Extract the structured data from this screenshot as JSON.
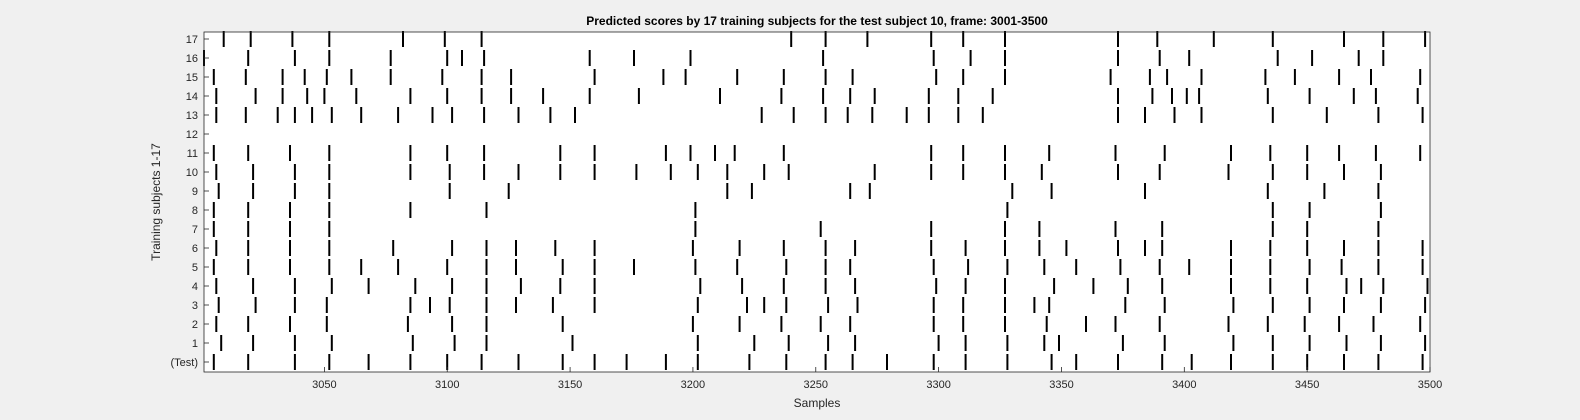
{
  "chart_data": {
    "type": "scatter",
    "title": "Predicted scores by 17 training subjects for the test subject 10, frame: 3001-3500",
    "xlabel": "Samples",
    "ylabel": "Training subjects 1-17",
    "xlim": [
      3001,
      3500
    ],
    "xticks": [
      3050,
      3100,
      3150,
      3200,
      3250,
      3300,
      3350,
      3400,
      3450,
      3500
    ],
    "ytick_labels": [
      "(Test)",
      "1",
      "2",
      "3",
      "4",
      "5",
      "6",
      "7",
      "8",
      "9",
      "10",
      "11",
      "12",
      "13",
      "14",
      "15",
      "16",
      "17"
    ],
    "rows": [
      {
        "label": "(Test)",
        "events": [
          3005,
          3019,
          3038,
          3052,
          3068,
          3085,
          3100,
          3114,
          3129,
          3147,
          3160,
          3173,
          3189,
          3202,
          3223,
          3238,
          3254,
          3265,
          3279,
          3298,
          3311,
          3328,
          3346,
          3356,
          3373,
          3391,
          3403,
          3419,
          3436,
          3450,
          3465,
          3479,
          3497
        ]
      },
      {
        "label": "1",
        "events": [
          3008,
          3021,
          3038,
          3053,
          3086,
          3103,
          3116,
          3151,
          3202,
          3225,
          3239,
          3255,
          3266,
          3300,
          3311,
          3328,
          3343,
          3349,
          3375,
          3392,
          3420,
          3436,
          3451,
          3466,
          3480,
          3498
        ]
      },
      {
        "label": "2",
        "events": [
          3006,
          3019,
          3036,
          3051,
          3084,
          3102,
          3116,
          3147,
          3200,
          3219,
          3236,
          3252,
          3264,
          3298,
          3310,
          3327,
          3344,
          3360,
          3372,
          3390,
          3418,
          3434,
          3449,
          3463,
          3477,
          3496
        ]
      },
      {
        "label": "3",
        "events": [
          3007,
          3022,
          3038,
          3051,
          3085,
          3093,
          3101,
          3116,
          3128,
          3143,
          3160,
          3202,
          3222,
          3229,
          3238,
          3255,
          3267,
          3298,
          3310,
          3327,
          3339,
          3345,
          3376,
          3392,
          3420,
          3436,
          3451,
          3465,
          3480,
          3498
        ]
      },
      {
        "label": "4",
        "events": [
          3006,
          3021,
          3038,
          3053,
          3068,
          3087,
          3102,
          3116,
          3130,
          3146,
          3160,
          3203,
          3220,
          3237,
          3254,
          3266,
          3299,
          3311,
          3327,
          3347,
          3363,
          3377,
          3391,
          3419,
          3435,
          3450,
          3466,
          3472,
          3481,
          3499
        ]
      },
      {
        "label": "5",
        "events": [
          3005,
          3019,
          3036,
          3052,
          3065,
          3080,
          3100,
          3116,
          3128,
          3147,
          3160,
          3176,
          3201,
          3218,
          3238,
          3254,
          3264,
          3298,
          3312,
          3328,
          3343,
          3356,
          3374,
          3390,
          3402,
          3419,
          3435,
          3451,
          3464,
          3479,
          3497
        ]
      },
      {
        "label": "6",
        "events": [
          3006,
          3019,
          3036,
          3052,
          3078,
          3102,
          3116,
          3128,
          3144,
          3160,
          3200,
          3219,
          3237,
          3254,
          3266,
          3297,
          3311,
          3327,
          3341,
          3352,
          3373,
          3384,
          3391,
          3419,
          3435,
          3450,
          3465,
          3479,
          3497
        ]
      },
      {
        "label": "7",
        "events": [
          3005,
          3019,
          3036,
          3052,
          3201,
          3252,
          3297,
          3327,
          3341,
          3372,
          3391,
          3436,
          3450,
          3479
        ]
      },
      {
        "label": "8",
        "events": [
          3005,
          3019,
          3036,
          3052,
          3085,
          3116,
          3201,
          3328,
          3436,
          3451,
          3480
        ]
      },
      {
        "label": "9",
        "events": [
          3007,
          3021,
          3038,
          3052,
          3101,
          3125,
          3214,
          3224,
          3264,
          3272,
          3330,
          3346,
          3384,
          3434,
          3457,
          3479
        ]
      },
      {
        "label": "10",
        "events": [
          3006,
          3021,
          3038,
          3052,
          3085,
          3101,
          3115,
          3129,
          3146,
          3160,
          3177,
          3191,
          3202,
          3214,
          3229,
          3239,
          3274,
          3297,
          3310,
          3327,
          3342,
          3373,
          3390,
          3418,
          3436,
          3450,
          3465,
          3480
        ]
      },
      {
        "label": "11",
        "events": [
          3005,
          3019,
          3036,
          3052,
          3085,
          3100,
          3115,
          3146,
          3160,
          3189,
          3199,
          3209,
          3217,
          3237,
          3297,
          3310,
          3327,
          3345,
          3372,
          3392,
          3419,
          3435,
          3450,
          3463,
          3478,
          3496
        ]
      },
      {
        "label": "12",
        "events": []
      },
      {
        "label": "13",
        "events": [
          3006,
          3018,
          3031,
          3038,
          3045,
          3053,
          3065,
          3080,
          3094,
          3102,
          3115,
          3129,
          3142,
          3152,
          3228,
          3241,
          3254,
          3263,
          3273,
          3287,
          3296,
          3308,
          3318,
          3373,
          3384,
          3396,
          3407,
          3436,
          3458,
          3479,
          3497
        ]
      },
      {
        "label": "14",
        "events": [
          3006,
          3022,
          3033,
          3043,
          3050,
          3063,
          3085,
          3100,
          3114,
          3126,
          3139,
          3158,
          3178,
          3211,
          3236,
          3253,
          3264,
          3274,
          3296,
          3308,
          3322,
          3373,
          3387,
          3395,
          3401,
          3406,
          3434,
          3451,
          3469,
          3478,
          3495
        ]
      },
      {
        "label": "15",
        "events": [
          3005,
          3018,
          3033,
          3042,
          3051,
          3061,
          3077,
          3098,
          3114,
          3126,
          3160,
          3188,
          3197,
          3218,
          3237,
          3254,
          3265,
          3299,
          3310,
          3327,
          3370,
          3386,
          3393,
          3407,
          3433,
          3445,
          3463,
          3476,
          3496
        ]
      },
      {
        "label": "16",
        "events": [
          3001,
          3019,
          3038,
          3052,
          3077,
          3100,
          3106,
          3115,
          3158,
          3176,
          3199,
          3253,
          3298,
          3313,
          3327,
          3373,
          3390,
          3402,
          3438,
          3452,
          3471,
          3481
        ]
      },
      {
        "label": "17",
        "events": [
          3009,
          3020,
          3037,
          3052,
          3082,
          3099,
          3114,
          3240,
          3254,
          3271,
          3297,
          3310,
          3327,
          3373,
          3389,
          3412,
          3436,
          3465,
          3481,
          3498
        ]
      }
    ],
    "grid": false,
    "legend": "none"
  }
}
